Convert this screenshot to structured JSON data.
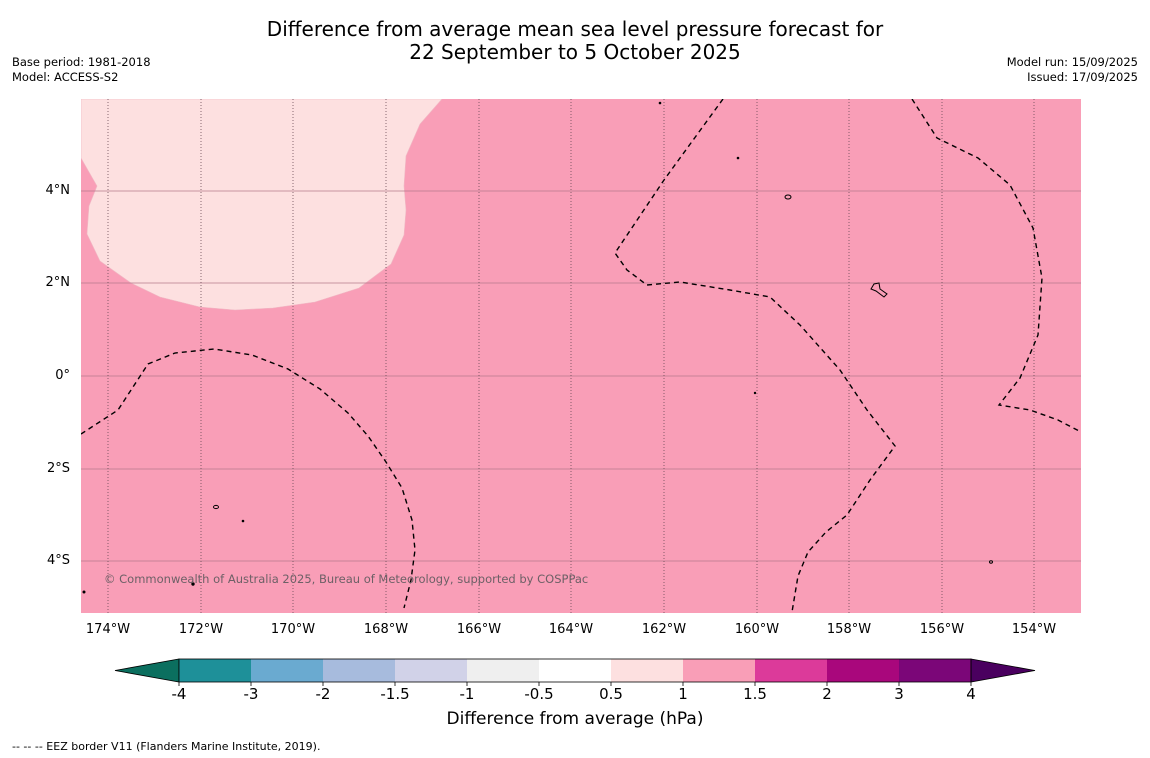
{
  "title_line1": "Difference from average mean sea level pressure forecast for",
  "title_line2": "22 September to 5 October 2025",
  "base_period": "Base period: 1981-2018",
  "model": "Model: ACCESS-S2",
  "model_run": "Model run: 15/09/2025",
  "issued": "Issued: 17/09/2025",
  "copyright": "© Commonwealth of Australia 2025, Bureau of Meteorology, supported by COSPPac",
  "y_ticks": [
    "4°N",
    "2°N",
    "0°",
    "2°S",
    "4°S"
  ],
  "x_ticks": [
    "174°W",
    "172°W",
    "170°W",
    "168°W",
    "166°W",
    "164°W",
    "162°W",
    "160°W",
    "158°W",
    "156°W",
    "154°W"
  ],
  "colorbar": {
    "ticks": [
      "-4",
      "-3",
      "-2",
      "-1.5",
      "-1",
      "-0.5",
      "0.5",
      "1",
      "1.5",
      "2",
      "3",
      "4"
    ],
    "colors": [
      "#0b6f5f",
      "#1e9099",
      "#6aaad0",
      "#a7bbdd",
      "#d1d2e8",
      "#efefef",
      "#ffffff",
      "#fde0e0",
      "#f99eb7",
      "#dc3a9a",
      "#a9077c",
      "#7b0678",
      "#4a005f"
    ],
    "label": "Difference from average (hPa)"
  },
  "map": {
    "background_category": "1 to 1.5",
    "background_color": "#f99eb7",
    "region_category": "0.5 to 1",
    "region_color": "#fde0e0"
  },
  "footnote": "--  --  -- EEZ border V11 (Flanders Marine Institute, 2019)."
}
